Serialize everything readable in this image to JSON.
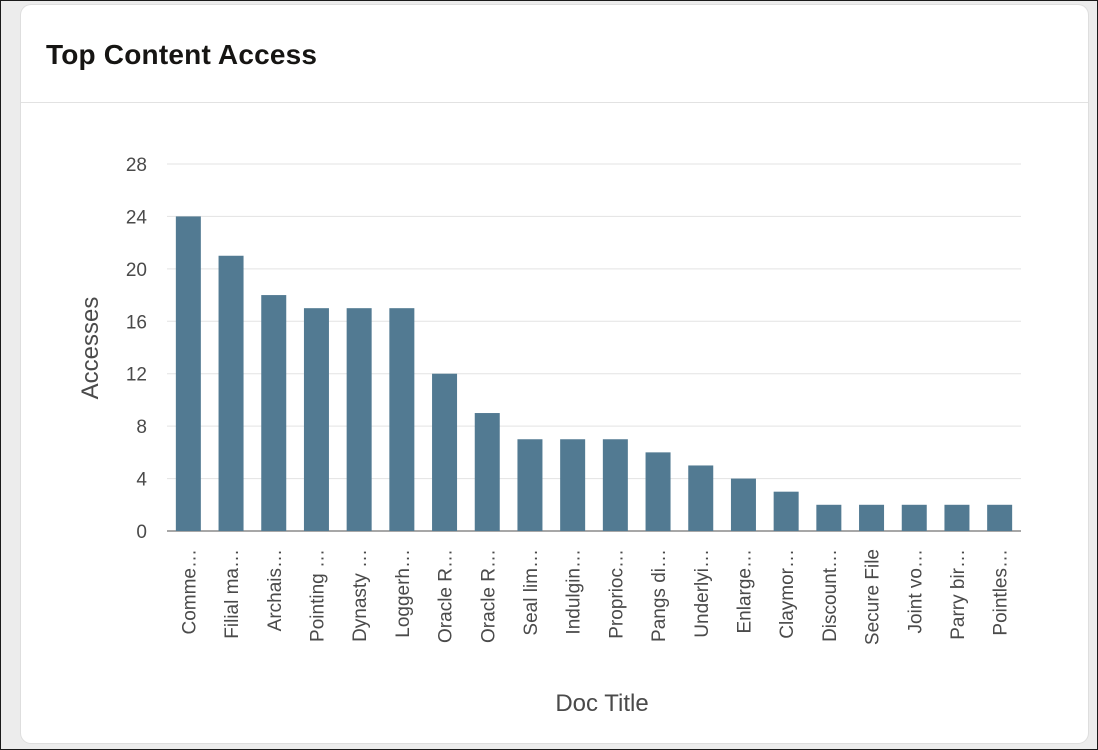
{
  "card": {
    "title": "Top Content Access"
  },
  "chart_data": {
    "type": "bar",
    "title": "",
    "xlabel": "Doc Title",
    "ylabel": "Accesses",
    "ylim": [
      0,
      28
    ],
    "yticks": [
      0,
      4,
      8,
      12,
      16,
      20,
      24,
      28
    ],
    "grid": true,
    "bar_color": "#527a92",
    "categories": [
      "Comme…",
      "Filial ma…",
      "Archais…",
      "Pointing …",
      "Dynasty …",
      "Loggerh…",
      "Oracle R…",
      "Oracle R…",
      "Seal lim…",
      "Indulgin…",
      "Proprioc…",
      "Pangs di…",
      "Underlyi…",
      "Enlarge…",
      "Claymor…",
      "Discount…",
      "Secure File",
      "Joint vo…",
      "Parry bir…",
      "Pointles…"
    ],
    "values": [
      24,
      21,
      18,
      17,
      17,
      17,
      12,
      9,
      7,
      7,
      7,
      6,
      5,
      4,
      3,
      2,
      2,
      2,
      2,
      2
    ]
  }
}
